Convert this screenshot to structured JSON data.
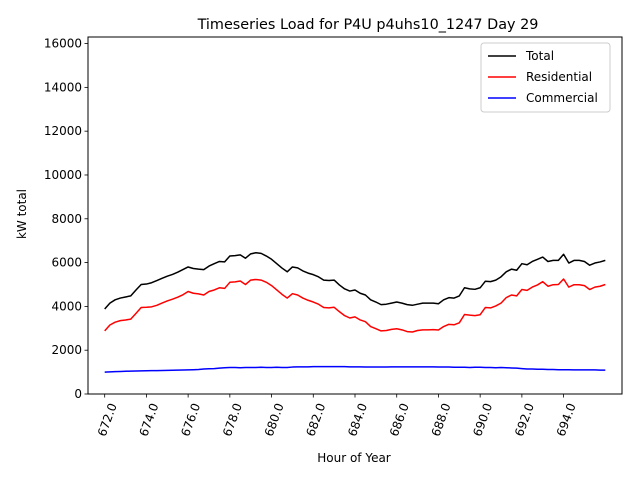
{
  "chart_data": {
    "type": "line",
    "title": "Timeseries Load for P4U p4uhs10_1247  Day 29",
    "xlabel": "Hour of Year",
    "ylabel": "kW total",
    "xlim": [
      671.2,
      696.8
    ],
    "ylim": [
      0,
      16300
    ],
    "xticks": [
      672,
      674,
      676,
      678,
      680,
      682,
      684,
      686,
      688,
      690,
      692,
      694
    ],
    "xtick_labels": [
      "672.0",
      "674.0",
      "676.0",
      "678.0",
      "680.0",
      "682.0",
      "684.0",
      "686.0",
      "688.0",
      "690.0",
      "692.0",
      "694.0"
    ],
    "yticks": [
      0,
      2000,
      4000,
      6000,
      8000,
      10000,
      12000,
      14000,
      16000
    ],
    "ytick_labels": [
      "0",
      "2000",
      "4000",
      "6000",
      "8000",
      "10000",
      "12000",
      "14000",
      "16000"
    ],
    "legend_position": "top-right",
    "grid": false,
    "x_start": 672.0,
    "x_step": 0.25,
    "series": [
      {
        "name": "Total",
        "color": "#000000",
        "values": [
          3880,
          4150,
          4300,
          4380,
          4430,
          4480,
          4750,
          5000,
          5020,
          5080,
          5180,
          5280,
          5380,
          5460,
          5560,
          5680,
          5800,
          5730,
          5700,
          5680,
          5840,
          5950,
          6050,
          6030,
          6300,
          6320,
          6350,
          6200,
          6400,
          6450,
          6420,
          6300,
          6150,
          5950,
          5750,
          5580,
          5800,
          5760,
          5620,
          5520,
          5450,
          5350,
          5200,
          5180,
          5200,
          4980,
          4800,
          4700,
          4750,
          4600,
          4520,
          4300,
          4200,
          4080,
          4100,
          4150,
          4200,
          4150,
          4080,
          4050,
          4100,
          4150,
          4150,
          4150,
          4120,
          4300,
          4400,
          4380,
          4480,
          4850,
          4800,
          4780,
          4850,
          5150,
          5130,
          5200,
          5350,
          5580,
          5700,
          5650,
          5950,
          5900,
          6050,
          6150,
          6250,
          6050,
          6100,
          6100,
          6380,
          5980,
          6100,
          6100,
          6050,
          5880,
          5980,
          6030,
          6100
        ]
      },
      {
        "name": "Residential",
        "color": "#ff0000",
        "values": [
          2880,
          3150,
          3280,
          3350,
          3380,
          3420,
          3680,
          3950,
          3960,
          3980,
          4050,
          4150,
          4250,
          4330,
          4420,
          4530,
          4680,
          4600,
          4570,
          4520,
          4680,
          4750,
          4850,
          4820,
          5100,
          5120,
          5160,
          5000,
          5200,
          5230,
          5200,
          5100,
          4950,
          4750,
          4550,
          4380,
          4580,
          4520,
          4380,
          4280,
          4200,
          4100,
          3950,
          3930,
          3960,
          3760,
          3580,
          3470,
          3520,
          3380,
          3300,
          3080,
          2980,
          2880,
          2900,
          2950,
          2980,
          2930,
          2850,
          2830,
          2900,
          2930,
          2930,
          2940,
          2920,
          3080,
          3180,
          3160,
          3250,
          3630,
          3600,
          3580,
          3620,
          3950,
          3930,
          4020,
          4150,
          4400,
          4520,
          4480,
          4770,
          4730,
          4880,
          4980,
          5130,
          4920,
          4990,
          5000,
          5250,
          4880,
          4990,
          4990,
          4950,
          4770,
          4880,
          4920,
          5000
        ]
      },
      {
        "name": "Commercial",
        "color": "#0000ff",
        "values": [
          1000,
          1010,
          1020,
          1030,
          1040,
          1045,
          1050,
          1055,
          1060,
          1065,
          1070,
          1075,
          1080,
          1085,
          1090,
          1095,
          1100,
          1110,
          1120,
          1140,
          1150,
          1160,
          1180,
          1200,
          1210,
          1210,
          1200,
          1210,
          1210,
          1210,
          1220,
          1210,
          1210,
          1220,
          1210,
          1210,
          1230,
          1240,
          1240,
          1240,
          1250,
          1250,
          1250,
          1250,
          1250,
          1250,
          1250,
          1240,
          1240,
          1240,
          1230,
          1230,
          1230,
          1230,
          1230,
          1240,
          1240,
          1240,
          1240,
          1240,
          1240,
          1240,
          1240,
          1240,
          1230,
          1230,
          1230,
          1220,
          1220,
          1220,
          1210,
          1220,
          1220,
          1210,
          1210,
          1200,
          1210,
          1200,
          1190,
          1180,
          1160,
          1140,
          1140,
          1130,
          1130,
          1120,
          1120,
          1110,
          1110,
          1110,
          1100,
          1100,
          1100,
          1100,
          1100,
          1090,
          1090
        ]
      }
    ]
  }
}
